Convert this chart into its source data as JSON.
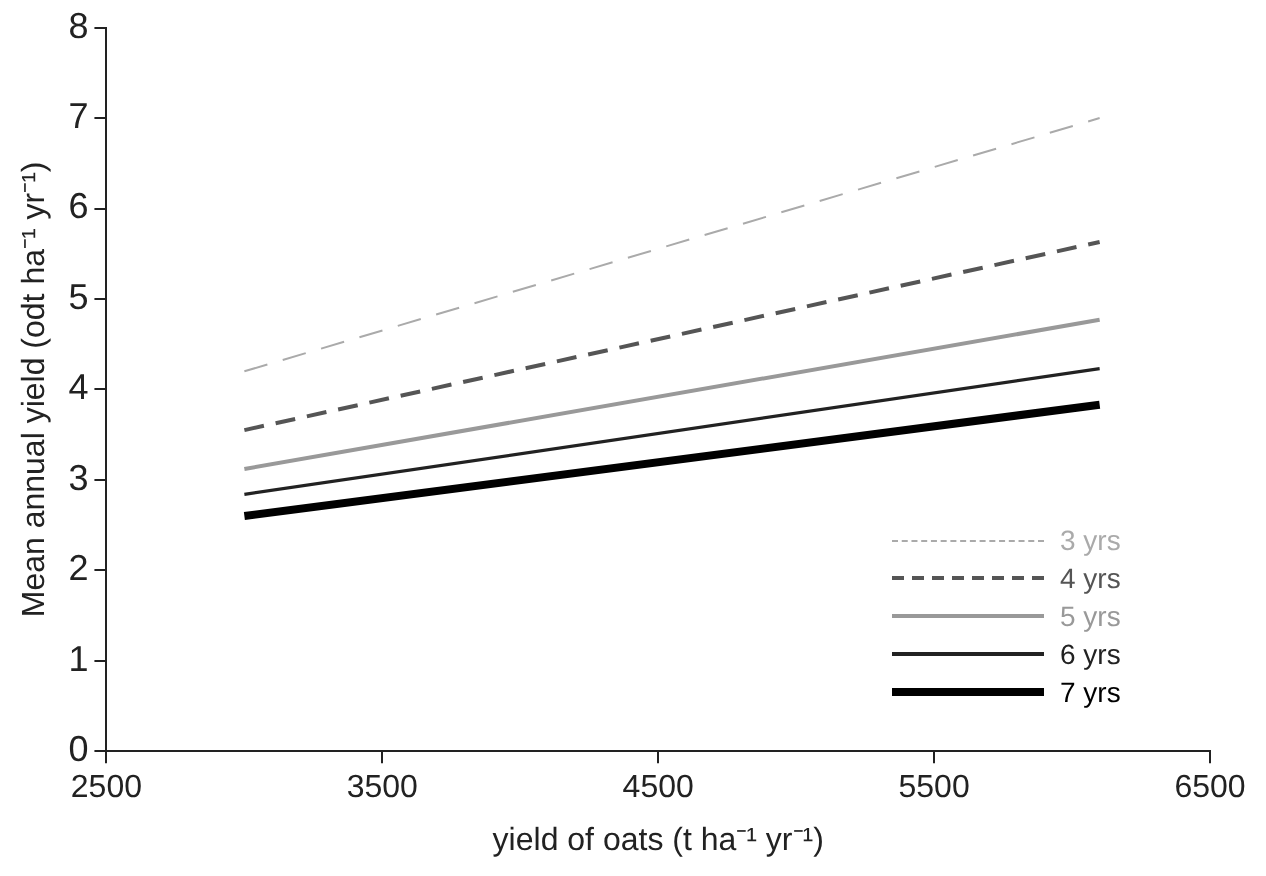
{
  "chart_data": {
    "type": "line",
    "xlabel": "yield of oats (t ha⁻¹ yr⁻¹)",
    "ylabel": "Mean annual yield (odt ha⁻¹ yr⁻¹)",
    "x": [
      3000,
      6100
    ],
    "xlim": [
      2500,
      6500
    ],
    "xticks": [
      2500,
      3500,
      4500,
      5500,
      6500
    ],
    "ylim": [
      0,
      8
    ],
    "yticks": [
      0,
      1,
      2,
      3,
      4,
      5,
      6,
      7,
      8
    ],
    "grid": false,
    "legend": "bottom right",
    "marker": "none",
    "series": [
      {
        "name": "3 yrs",
        "color": "#aaaaaa",
        "line_style": "dashed",
        "values": [
          4.2,
          7.0
        ]
      },
      {
        "name": "4 yrs",
        "color": "#555555",
        "line_style": "dashed",
        "values": [
          3.55,
          5.63
        ]
      },
      {
        "name": "5 yrs",
        "color": "#999999",
        "line_style": "solid",
        "values": [
          3.12,
          4.77
        ]
      },
      {
        "name": "6 yrs",
        "color": "#222222",
        "line_style": "solid",
        "values": [
          2.84,
          4.23
        ]
      },
      {
        "name": "7 yrs",
        "color": "#000000",
        "line_style": "solid",
        "values": [
          2.6,
          3.83
        ]
      }
    ]
  }
}
